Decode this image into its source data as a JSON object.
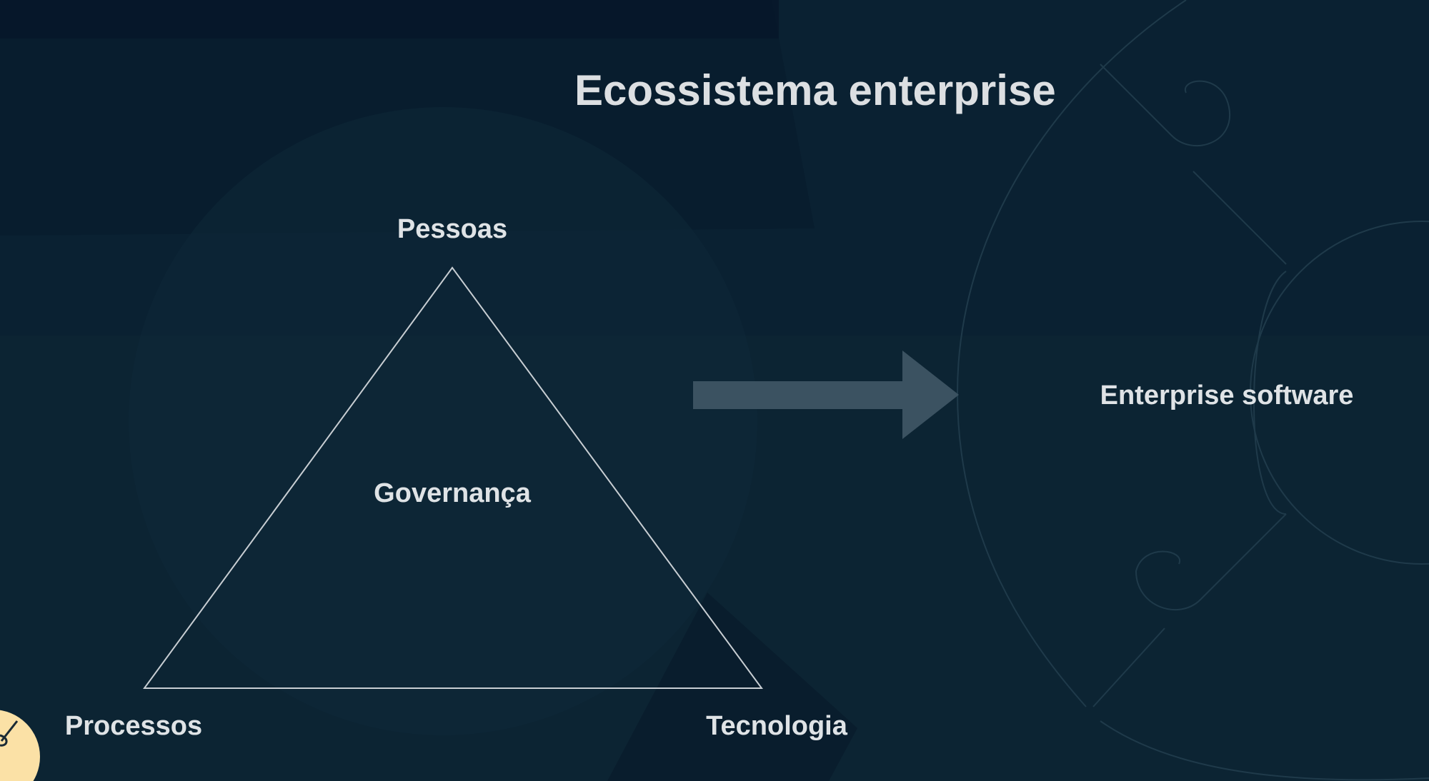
{
  "slide": {
    "title": "Ecossistema enterprise"
  },
  "triangle": {
    "top_label": "Pessoas",
    "center_label": "Governança",
    "bottom_left_label": "Processos",
    "bottom_right_label": "Tecnologia"
  },
  "target": {
    "label": "Enterprise software"
  },
  "colors": {
    "background": "#0c2433",
    "text": "#dfe3e6",
    "triangle_stroke": "#c8ced3",
    "arrow_fill": "#3b5261",
    "accent_yellow": "#fbe1a6",
    "decoration_line": "#1f3a4a"
  }
}
